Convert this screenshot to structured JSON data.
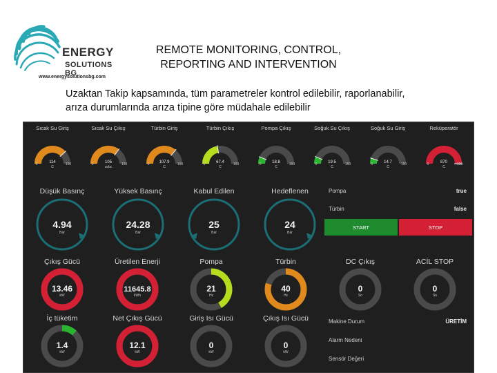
{
  "logo": {
    "word1": "ENERGY",
    "word2": "SOLUTIONS BG",
    "url": "www.energysolutionsbg.com"
  },
  "slide": {
    "title_line1": "REMOTE MONITORING, CONTROL,",
    "title_line2": "REPORTING AND INTERVENTION",
    "desc_line1": "Uzaktan Takip kapsamında, tüm parametreler kontrol edilebilir, raporlanabilir,",
    "desc_line2": "arıza durumlarında arıza tipine göre müdahale edilebilir"
  },
  "colors": {
    "orange": "#e08a1e",
    "lime": "#b5dd1e",
    "green": "#2ab530",
    "red": "#d32034",
    "teal": "#1c6e76",
    "track": "#4a4a4a"
  },
  "top_gauges": [
    {
      "label": "Sıcak Su Giriş",
      "value": "114",
      "unit": "C",
      "min": "0",
      "max": "150",
      "level": 0.76,
      "color": "orange"
    },
    {
      "label": "Sıcak Su Çıkış",
      "value": "105",
      "unit": "ucbc",
      "min": "0",
      "max": "150",
      "level": 0.7,
      "color": "orange"
    },
    {
      "label": "Türbin Giriş",
      "value": "107.9",
      "unit": "C",
      "min": "0",
      "max": "150",
      "level": 0.72,
      "color": "orange"
    },
    {
      "label": "Türbin Çıkış",
      "value": "67.4",
      "unit": "C",
      "min": "0",
      "max": "150",
      "level": 0.45,
      "color": "lime"
    },
    {
      "label": "Pompa Çıkış",
      "value": "18.8",
      "unit": "C",
      "min": "0",
      "max": "150",
      "level": 0.125,
      "color": "green"
    },
    {
      "label": "Soğuk Su Çıkış",
      "value": "19.5",
      "unit": "C",
      "min": "0",
      "max": "150",
      "level": 0.13,
      "color": "green"
    },
    {
      "label": "Soğuk Su Giriş",
      "value": "14.7",
      "unit": "C",
      "min": "0",
      "max": "150",
      "level": 0.1,
      "color": "green"
    },
    {
      "label": "Reküperatör",
      "value": "870",
      "unit": "C",
      "min": "0",
      "max": "150",
      "level": 1.0,
      "color": "red"
    }
  ],
  "compass_gauges": [
    {
      "label": "Düşük Basınç",
      "value": "4.94",
      "unit": "Bar"
    },
    {
      "label": "Yüksek Basınç",
      "value": "24.28",
      "unit": "Bar"
    },
    {
      "label": "Kabul Edilen",
      "value": "25",
      "unit": "Bar"
    },
    {
      "label": "Hedeflenen",
      "value": "24",
      "unit": "Bar"
    }
  ],
  "status": {
    "pompa_label": "Pompa",
    "pompa_value": "true",
    "turbin_label": "Türbin",
    "turbin_value": "false",
    "start_label": "START",
    "stop_label": "STOP"
  },
  "donut_row1": [
    {
      "label": "Çıkış Gücü",
      "value": "13.46",
      "unit": "kW",
      "level": 1.0,
      "color": "red"
    },
    {
      "label": "Üretilen Enerji",
      "value": "11645.8",
      "unit": "kWh",
      "level": 1.0,
      "color": "red"
    },
    {
      "label": "Pompa",
      "value": "21",
      "unit": "Hz",
      "level": 0.42,
      "color": "lime"
    },
    {
      "label": "Türbin",
      "value": "40",
      "unit": "Hz",
      "level": 0.8,
      "color": "orange"
    },
    {
      "label": "DC Çıkış",
      "value": "0",
      "unit": "Sn",
      "level": 0,
      "color": "green"
    },
    {
      "label": "ACİL STOP",
      "value": "0",
      "unit": "Sn",
      "level": 0,
      "color": "green"
    }
  ],
  "donut_row2": [
    {
      "label": "İç tüketim",
      "value": "1.4",
      "unit": "kW",
      "level": 0.12,
      "color": "green"
    },
    {
      "label": "Net Çıkış Gücü",
      "value": "12.1",
      "unit": "kW",
      "level": 1.0,
      "color": "red"
    },
    {
      "label": "Giriş Isı Gücü",
      "value": "0",
      "unit": "kW",
      "level": 0,
      "color": "green"
    },
    {
      "label": "Çıkış Isı Gücü",
      "value": "0",
      "unit": "kW",
      "level": 0,
      "color": "green"
    }
  ],
  "info": {
    "durum_label": "Makine Durum",
    "durum_value": "ÜRETİM",
    "alarm_label": "Alarm Nedeni",
    "sensor_label": "Sensör Değeri"
  }
}
